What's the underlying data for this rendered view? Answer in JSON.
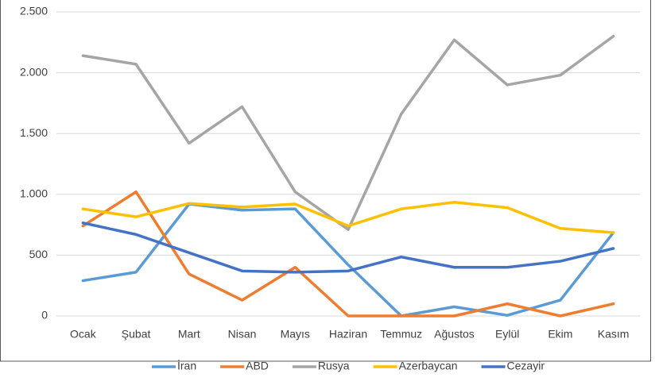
{
  "chart_data": {
    "type": "line",
    "categories": [
      "Ocak",
      "Şubat",
      "Mart",
      "Nisan",
      "Mayıs",
      "Haziran",
      "Temmuz",
      "Ağustos",
      "Eylül",
      "Ekim",
      "Kasım"
    ],
    "series": [
      {
        "name": "İran",
        "color": "#5b9bd5",
        "values": [
          290,
          360,
          920,
          870,
          880,
          420,
          0,
          75,
          5,
          130,
          685
        ]
      },
      {
        "name": "ABD",
        "color": "#ed7d31",
        "values": [
          740,
          1020,
          345,
          130,
          400,
          0,
          0,
          0,
          100,
          0,
          100
        ]
      },
      {
        "name": "Rusya",
        "color": "#a5a5a5",
        "values": [
          2140,
          2070,
          1420,
          1720,
          1020,
          710,
          1660,
          2270,
          1900,
          1980,
          2300
        ]
      },
      {
        "name": "Azerbaycan",
        "color": "#ffc000",
        "values": [
          880,
          815,
          925,
          895,
          920,
          740,
          880,
          935,
          890,
          720,
          685
        ]
      },
      {
        "name": "Cezayir",
        "color": "#4472c4",
        "values": [
          765,
          670,
          520,
          370,
          360,
          370,
          485,
          400,
          400,
          450,
          555
        ]
      }
    ],
    "ylim": [
      0,
      2500
    ],
    "yticks": [
      0,
      500,
      {
        "value": 1000,
        "label": "1.000"
      },
      {
        "value": 1500,
        "label": "1.500"
      },
      {
        "value": 2000,
        "label": "2.000"
      },
      {
        "value": 2500,
        "label": "2.500"
      }
    ],
    "grid": true,
    "legend": "bottom"
  }
}
